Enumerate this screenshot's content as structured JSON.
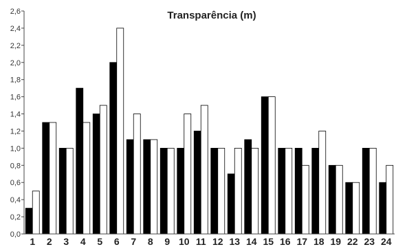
{
  "chart_data": {
    "type": "bar",
    "title": "Transparência (m)",
    "xlabel": "",
    "ylabel": "",
    "ylim": [
      0,
      2.6
    ],
    "yticks": [
      "0,0",
      "0,2",
      "0,4",
      "0,6",
      "0,8",
      "1,0",
      "1,2",
      "1,4",
      "1,6",
      "1,8",
      "2,0",
      "2,2",
      "2,4",
      "2,6"
    ],
    "categories": [
      "1",
      "2",
      "3",
      "4",
      "5",
      "6",
      "7",
      "8",
      "9",
      "10",
      "11",
      "12",
      "13",
      "14",
      "15",
      "16",
      "17",
      "18",
      "19",
      "22",
      "23",
      "24"
    ],
    "series": [
      {
        "color": "#000000",
        "values": [
          0.3,
          1.3,
          1.0,
          1.7,
          1.4,
          2.0,
          1.1,
          1.1,
          1.0,
          1.0,
          1.2,
          1.0,
          0.7,
          1.1,
          1.6,
          1.0,
          1.0,
          1.0,
          0.8,
          0.6,
          1.0,
          0.6
        ]
      },
      {
        "color": "#ffffff",
        "values": [
          0.5,
          1.3,
          1.0,
          1.3,
          1.5,
          2.4,
          1.4,
          1.1,
          1.0,
          1.4,
          1.5,
          1.0,
          1.0,
          1.0,
          1.6,
          1.0,
          0.8,
          1.2,
          0.8,
          0.6,
          1.0,
          0.8
        ]
      }
    ],
    "grid": false,
    "legend": "none"
  }
}
